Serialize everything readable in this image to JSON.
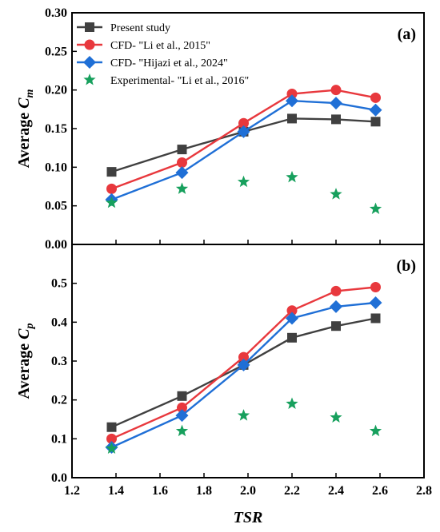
{
  "chart_data": [
    {
      "type": "line",
      "panel_label": "(a)",
      "x": [
        1.38,
        1.7,
        1.98,
        2.2,
        2.4,
        2.58
      ],
      "ylabel_main": "Average ",
      "ylabel_var": "C",
      "ylabel_sub": "m",
      "xlim": [
        1.2,
        2.8
      ],
      "ylim": [
        0.0,
        0.3
      ],
      "yticks": [
        "0.00",
        "0.05",
        "0.10",
        "0.15",
        "0.20",
        "0.25",
        "0.30"
      ],
      "grid": false,
      "legend_position": "top-left",
      "series": [
        {
          "name": "Present study",
          "color": "#404040",
          "marker": "square",
          "line": true,
          "values": [
            0.094,
            0.123,
            0.146,
            0.163,
            0.162,
            0.159
          ]
        },
        {
          "name": "CFD- \"Li et al., 2015\"",
          "color": "#e8383d",
          "marker": "circle",
          "line": true,
          "values": [
            0.072,
            0.106,
            0.157,
            0.195,
            0.2,
            0.19
          ]
        },
        {
          "name": "CFD- \"Hijazi et al., 2024\"",
          "color": "#1f6fd6",
          "marker": "diamond",
          "line": true,
          "values": [
            0.058,
            0.093,
            0.146,
            0.186,
            0.183,
            0.174
          ]
        },
        {
          "name": "Experimental- \"Li et al., 2016\"",
          "color": "#17a05d",
          "marker": "star",
          "line": false,
          "values": [
            0.054,
            0.072,
            0.081,
            0.087,
            0.065,
            0.046
          ]
        }
      ]
    },
    {
      "type": "line",
      "panel_label": "(b)",
      "x": [
        1.38,
        1.7,
        1.98,
        2.2,
        2.4,
        2.58
      ],
      "ylabel_main": "Average ",
      "ylabel_var": "C",
      "ylabel_sub": "p",
      "xlabel": "TSR",
      "xlim": [
        1.2,
        2.8
      ],
      "ylim": [
        0.0,
        0.6
      ],
      "xticks": [
        "1.2",
        "1.4",
        "1.6",
        "1.8",
        "2.0",
        "2.2",
        "2.4",
        "2.6",
        "2.8"
      ],
      "yticks": [
        "0.0",
        "0.1",
        "0.2",
        "0.3",
        "0.4",
        "0.5"
      ],
      "grid": false,
      "series": [
        {
          "name": "Present study",
          "color": "#404040",
          "marker": "square",
          "line": true,
          "values": [
            0.13,
            0.21,
            0.29,
            0.36,
            0.39,
            0.41
          ]
        },
        {
          "name": "CFD- \"Li et al., 2015\"",
          "color": "#e8383d",
          "marker": "circle",
          "line": true,
          "values": [
            0.1,
            0.18,
            0.31,
            0.43,
            0.48,
            0.49
          ]
        },
        {
          "name": "CFD- \"Hijazi et al., 2024\"",
          "color": "#1f6fd6",
          "marker": "diamond",
          "line": true,
          "values": [
            0.078,
            0.16,
            0.29,
            0.41,
            0.44,
            0.45
          ]
        },
        {
          "name": "Experimental- \"Li et al., 2016\"",
          "color": "#17a05d",
          "marker": "star",
          "line": false,
          "values": [
            0.075,
            0.12,
            0.16,
            0.19,
            0.155,
            0.12
          ]
        }
      ]
    }
  ]
}
